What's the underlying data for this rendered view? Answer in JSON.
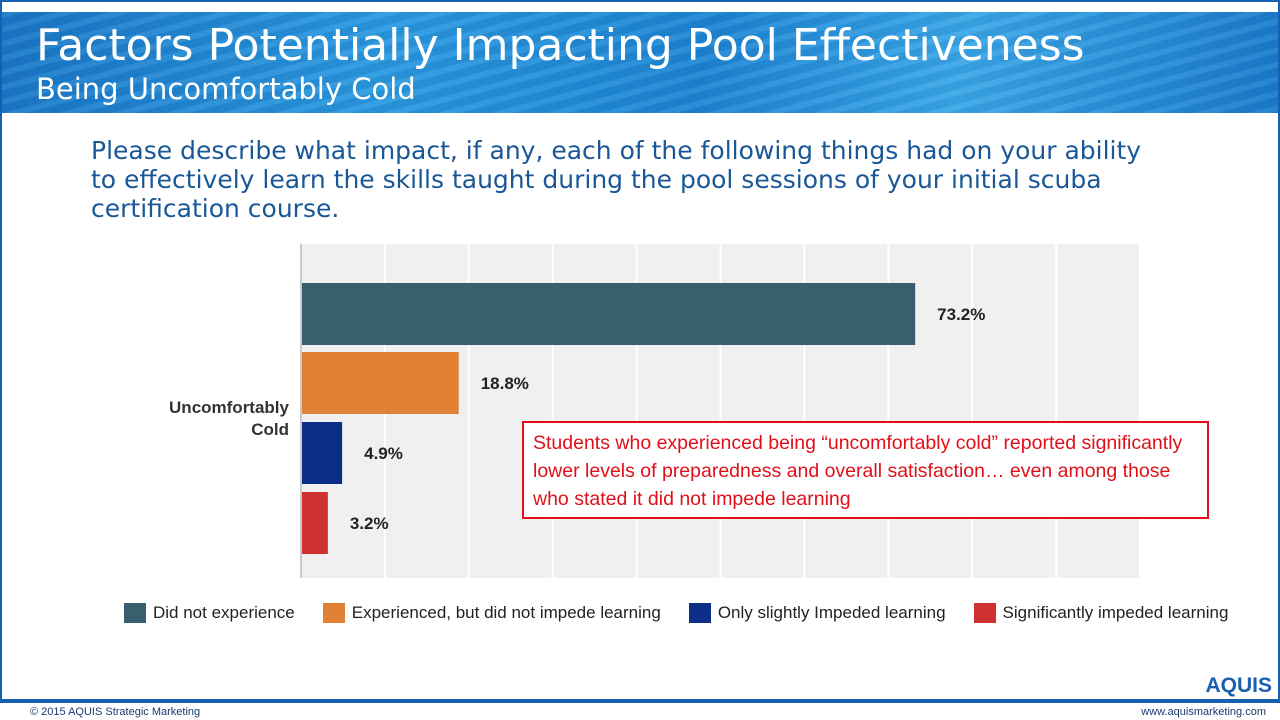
{
  "header": {
    "title": "Factors Potentially Impacting Pool Effectiveness",
    "subtitle": "Being Uncomfortably Cold"
  },
  "question": "Please describe what impact, if any, each of the following things had on your ability to effectively learn the skills taught during the pool sessions of your initial scuba certification course.",
  "chart_data": {
    "type": "bar",
    "orientation": "horizontal",
    "categories": [
      "Uncomfortably Cold"
    ],
    "series": [
      {
        "name": "Did not experience",
        "values": [
          73.2
        ],
        "label": "73.2%",
        "color": "#385f6e"
      },
      {
        "name": "Experienced, but did not impede learning",
        "values": [
          18.8
        ],
        "label": "18.8%",
        "color": "#e08136"
      },
      {
        "name": "Only slightly Impeded learning",
        "values": [
          4.9
        ],
        "label": "4.9%",
        "color": "#0c2e87"
      },
      {
        "name": "Significantly impeded learning",
        "values": [
          3.2
        ],
        "label": "3.2%",
        "color": "#cf3030"
      }
    ],
    "xlim": [
      0,
      100
    ],
    "grid": true,
    "legend": "bottom"
  },
  "category_label_lines": [
    "Uncomfortably",
    "Cold"
  ],
  "callout": "Students who experienced being “uncomfortably cold” reported significantly lower levels of preparedness and overall satisfaction… even among those who stated it did not impede learning",
  "footer": {
    "logo": "AQUIS",
    "copyright": "© 2015 AQUIS Strategic Marketing",
    "url": "www.aquismarketing.com"
  }
}
